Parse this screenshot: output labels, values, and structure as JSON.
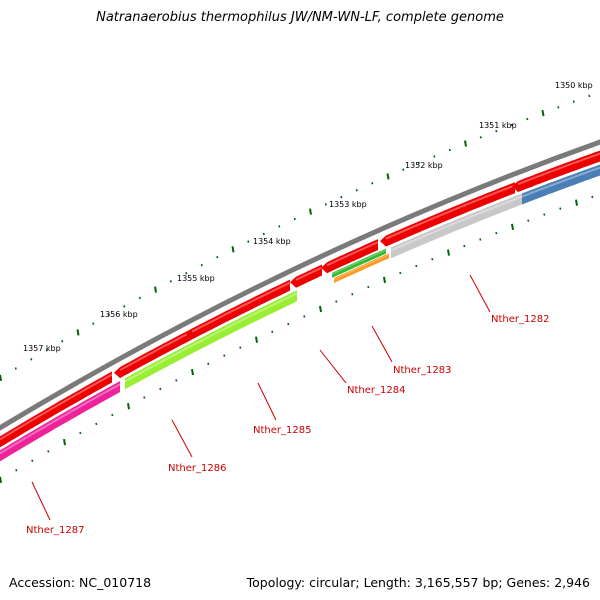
{
  "title": "Natranaerobius thermophilus JW/NM-WN-LF, complete genome",
  "accession": "Accession: NC_010718",
  "info": "Topology: circular; Length: 3,165,557 bp; Genes: 2,946",
  "scale_labels": [
    "1350 kbp",
    "1351 kbp",
    "1352 kbp",
    "1353 kbp",
    "1354 kbp",
    "1355 kbp",
    "1356 kbp",
    "1357 kbp"
  ],
  "gene_labels": [
    "Nther_1282",
    "Nther_1283",
    "Nther_1284",
    "Nther_1285",
    "Nther_1286",
    "Nther_1287"
  ],
  "colors": {
    "backbone": "#7a7a7a",
    "forward_strand": "#ee0000",
    "tick": "#006600",
    "label": "#cc0000",
    "gray_feature": "#c8c8c8",
    "blue_feature": "#4a7fb5",
    "green_feature": "#33bb33",
    "orange_feature": "#ff9922",
    "lime_feature": "#99ee33",
    "pink_feature": "#ee2299"
  }
}
